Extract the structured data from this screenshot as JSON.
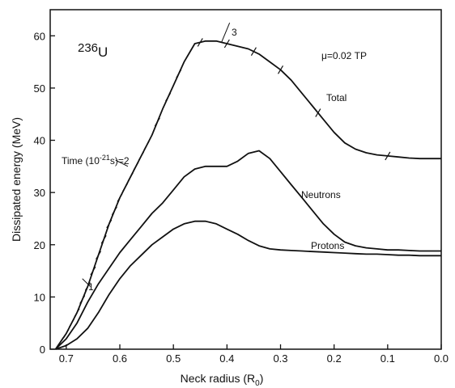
{
  "chart_data": {
    "type": "line",
    "xlabel": "Neck radius (R",
    "xlabel_sub": "0",
    "xlabel_close": ")",
    "ylabel": "Dissipated energy (MeV)",
    "xlim": [
      0.73,
      0.0
    ],
    "ylim": [
      0,
      65
    ],
    "x_ticks": [
      "0.7",
      "0.6",
      "0.5",
      "0.4",
      "0.3",
      "0.2",
      "0.1",
      "0.0"
    ],
    "y_ticks": [
      "0",
      "10",
      "20",
      "30",
      "40",
      "50",
      "60"
    ],
    "grid": false,
    "annotations": {
      "nucleus_mass": "236",
      "nucleus_symbol": "U",
      "mu": "μ=0.02 TP",
      "time_label": "Time (10",
      "time_exp": "-21",
      "time_rest": "s)=2",
      "time_1": "1",
      "time_3": "3"
    },
    "series": [
      {
        "name": "Total",
        "x": [
          0.72,
          0.71,
          0.7,
          0.68,
          0.66,
          0.64,
          0.62,
          0.6,
          0.58,
          0.56,
          0.54,
          0.52,
          0.5,
          0.48,
          0.46,
          0.44,
          0.42,
          0.4,
          0.38,
          0.36,
          0.34,
          0.32,
          0.3,
          0.28,
          0.26,
          0.24,
          0.22,
          0.2,
          0.18,
          0.16,
          0.14,
          0.12,
          0.1,
          0.08,
          0.06,
          0.04,
          0.02,
          0.0
        ],
        "values": [
          0,
          1.5,
          3,
          7,
          12,
          18,
          24,
          29,
          33,
          37,
          41,
          46,
          50.5,
          55,
          58.5,
          59,
          59,
          58.5,
          58,
          57.5,
          56.5,
          55,
          53.5,
          51.5,
          49,
          46.5,
          44,
          41.5,
          39.5,
          38.3,
          37.6,
          37.2,
          37,
          36.8,
          36.6,
          36.5,
          36.5,
          36.5
        ]
      },
      {
        "name": "Neutrons",
        "x": [
          0.72,
          0.7,
          0.68,
          0.66,
          0.64,
          0.62,
          0.6,
          0.58,
          0.56,
          0.54,
          0.52,
          0.5,
          0.48,
          0.46,
          0.44,
          0.42,
          0.4,
          0.38,
          0.36,
          0.34,
          0.32,
          0.3,
          0.28,
          0.26,
          0.24,
          0.22,
          0.2,
          0.18,
          0.16,
          0.14,
          0.12,
          0.1,
          0.08,
          0.06,
          0.04,
          0.02,
          0.0
        ],
        "values": [
          0,
          2,
          5,
          9,
          12.5,
          15.5,
          18.5,
          21,
          23.5,
          26,
          28,
          30.5,
          33,
          34.5,
          35,
          35,
          35,
          36,
          37.5,
          38,
          36.5,
          34,
          31.5,
          29,
          26.5,
          24,
          22,
          20.5,
          19.8,
          19.4,
          19.2,
          19,
          19,
          18.9,
          18.8,
          18.8,
          18.8
        ]
      },
      {
        "name": "Protons",
        "x": [
          0.72,
          0.7,
          0.68,
          0.66,
          0.64,
          0.62,
          0.6,
          0.58,
          0.56,
          0.54,
          0.52,
          0.5,
          0.48,
          0.46,
          0.44,
          0.42,
          0.4,
          0.38,
          0.36,
          0.34,
          0.32,
          0.3,
          0.28,
          0.26,
          0.24,
          0.22,
          0.2,
          0.18,
          0.16,
          0.14,
          0.12,
          0.1,
          0.08,
          0.06,
          0.04,
          0.02,
          0.0
        ],
        "values": [
          0,
          0.7,
          2,
          4,
          7,
          10.5,
          13.5,
          16,
          18,
          20,
          21.5,
          23,
          24,
          24.5,
          24.5,
          24,
          23,
          22,
          20.8,
          19.8,
          19.2,
          19,
          18.9,
          18.8,
          18.7,
          18.6,
          18.5,
          18.4,
          18.3,
          18.2,
          18.2,
          18.1,
          18.0,
          18.0,
          17.9,
          17.9,
          17.9
        ]
      }
    ],
    "total_tick_x": [
      0.71,
      0.7,
      0.69,
      0.68,
      0.67,
      0.66,
      0.65,
      0.64,
      0.63,
      0.62,
      0.61,
      0.6,
      0.59,
      0.58,
      0.57,
      0.56,
      0.55,
      0.53,
      0.51,
      0.49,
      0.47,
      0.45,
      0.4,
      0.35,
      0.3,
      0.23,
      0.1
    ]
  }
}
